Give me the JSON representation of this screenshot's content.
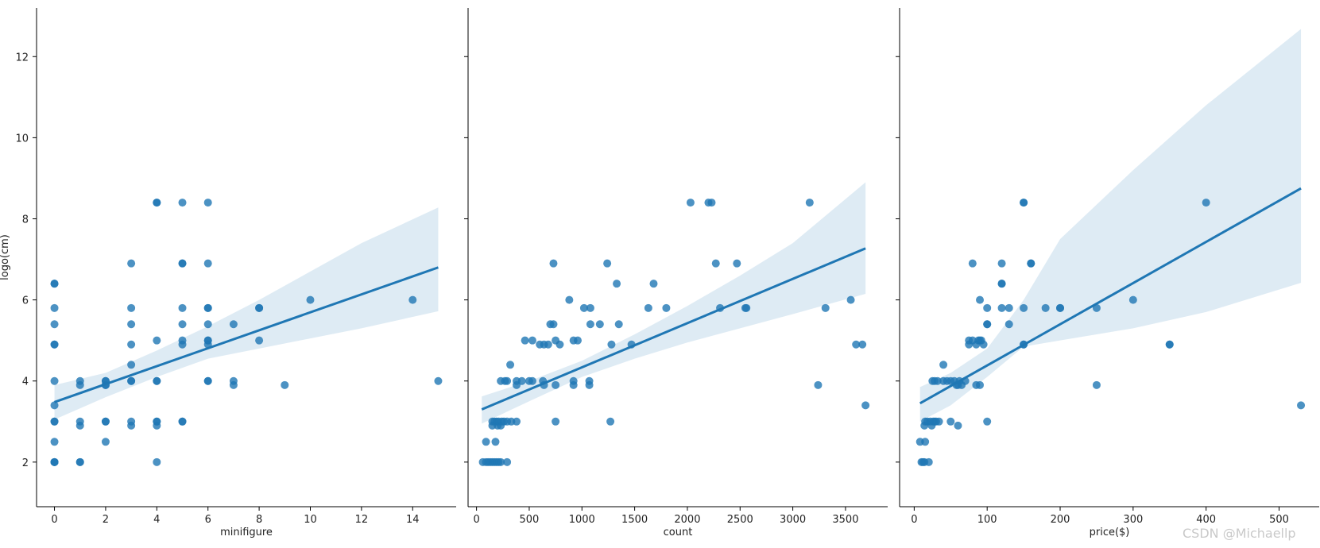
{
  "chart_data": [
    {
      "type": "scatter",
      "xlabel": "minifigure",
      "ylabel": "logo(cm)",
      "xlim": [
        -0.7,
        15.7
      ],
      "ylim": [
        0.9,
        13.2
      ],
      "xticks": [
        0,
        2,
        4,
        6,
        8,
        10,
        12,
        14
      ],
      "yticks": [
        2,
        4,
        6,
        8,
        10,
        12
      ],
      "show_yticklabels": true,
      "points": [
        [
          0,
          2
        ],
        [
          0,
          2
        ],
        [
          0,
          2
        ],
        [
          0,
          2.5
        ],
        [
          0,
          3
        ],
        [
          0,
          3
        ],
        [
          0,
          3.4
        ],
        [
          0,
          4
        ],
        [
          0,
          4.9
        ],
        [
          0,
          4.9
        ],
        [
          0,
          5.4
        ],
        [
          0,
          5.8
        ],
        [
          0,
          6.4
        ],
        [
          0,
          6.4
        ],
        [
          1,
          2
        ],
        [
          1,
          2
        ],
        [
          1,
          2.9
        ],
        [
          1,
          3
        ],
        [
          1,
          3.9
        ],
        [
          1,
          4
        ],
        [
          2,
          2.5
        ],
        [
          2,
          3
        ],
        [
          2,
          3
        ],
        [
          2,
          3.9
        ],
        [
          2,
          3.9
        ],
        [
          2,
          4
        ],
        [
          2,
          4
        ],
        [
          3,
          2.9
        ],
        [
          3,
          3
        ],
        [
          3,
          4
        ],
        [
          3,
          4
        ],
        [
          3,
          4.4
        ],
        [
          3,
          4.9
        ],
        [
          3,
          5.4
        ],
        [
          3,
          5.8
        ],
        [
          3,
          6.9
        ],
        [
          4,
          2
        ],
        [
          4,
          2.9
        ],
        [
          4,
          3
        ],
        [
          4,
          3
        ],
        [
          4,
          4
        ],
        [
          4,
          4
        ],
        [
          4,
          5
        ],
        [
          4,
          8.4
        ],
        [
          4,
          8.4
        ],
        [
          5,
          3
        ],
        [
          5,
          3
        ],
        [
          5,
          4.9
        ],
        [
          5,
          5
        ],
        [
          5,
          5.4
        ],
        [
          5,
          5.8
        ],
        [
          5,
          6.9
        ],
        [
          5,
          6.9
        ],
        [
          5,
          8.4
        ],
        [
          6,
          4
        ],
        [
          6,
          4
        ],
        [
          6,
          4.9
        ],
        [
          6,
          5
        ],
        [
          6,
          5
        ],
        [
          6,
          5.4
        ],
        [
          6,
          5.8
        ],
        [
          6,
          5.8
        ],
        [
          6,
          6.9
        ],
        [
          6,
          8.4
        ],
        [
          7,
          3.9
        ],
        [
          7,
          4
        ],
        [
          7,
          5.4
        ],
        [
          8,
          5
        ],
        [
          8,
          5.8
        ],
        [
          8,
          5.8
        ],
        [
          9,
          3.9
        ],
        [
          10,
          6
        ],
        [
          14,
          6
        ],
        [
          15,
          4
        ]
      ],
      "regression": {
        "x_start": 0,
        "y_start": 3.48,
        "x_end": 15,
        "y_end": 6.8
      },
      "ci_band": [
        [
          0,
          3.05,
          3.9
        ],
        [
          2,
          3.6,
          4.2
        ],
        [
          4,
          4.1,
          4.75
        ],
        [
          6,
          4.55,
          5.35
        ],
        [
          8,
          4.8,
          6.0
        ],
        [
          10,
          5.05,
          6.7
        ],
        [
          12,
          5.3,
          7.4
        ],
        [
          15,
          5.72,
          8.28
        ]
      ]
    },
    {
      "type": "scatter",
      "xlabel": "count",
      "ylabel": "",
      "xlim": [
        -80,
        3900
      ],
      "ylim": [
        0.9,
        13.2
      ],
      "xticks": [
        0,
        500,
        1000,
        1500,
        2000,
        2500,
        3000,
        3500
      ],
      "yticks": [
        2,
        4,
        6,
        8,
        10,
        12
      ],
      "show_yticklabels": false,
      "points": [
        [
          60,
          2
        ],
        [
          90,
          2
        ],
        [
          110,
          2
        ],
        [
          130,
          2
        ],
        [
          150,
          2
        ],
        [
          170,
          2
        ],
        [
          190,
          2
        ],
        [
          210,
          2
        ],
        [
          230,
          2
        ],
        [
          290,
          2
        ],
        [
          90,
          2.5
        ],
        [
          180,
          2.5
        ],
        [
          150,
          2.9
        ],
        [
          200,
          2.9
        ],
        [
          230,
          2.9
        ],
        [
          150,
          3
        ],
        [
          170,
          3
        ],
        [
          190,
          3
        ],
        [
          210,
          3
        ],
        [
          240,
          3
        ],
        [
          260,
          3
        ],
        [
          290,
          3
        ],
        [
          330,
          3
        ],
        [
          380,
          3
        ],
        [
          750,
          3
        ],
        [
          1270,
          3
        ],
        [
          230,
          4
        ],
        [
          270,
          4
        ],
        [
          290,
          4
        ],
        [
          380,
          4
        ],
        [
          430,
          4
        ],
        [
          500,
          4
        ],
        [
          530,
          4
        ],
        [
          630,
          4
        ],
        [
          920,
          4
        ],
        [
          1070,
          4
        ],
        [
          380,
          3.9
        ],
        [
          640,
          3.9
        ],
        [
          750,
          3.9
        ],
        [
          920,
          3.9
        ],
        [
          1070,
          3.9
        ],
        [
          3240,
          3.9
        ],
        [
          320,
          4.4
        ],
        [
          460,
          5
        ],
        [
          530,
          5
        ],
        [
          600,
          4.9
        ],
        [
          640,
          4.9
        ],
        [
          680,
          4.9
        ],
        [
          790,
          4.9
        ],
        [
          920,
          5
        ],
        [
          960,
          5
        ],
        [
          750,
          5
        ],
        [
          1280,
          4.9
        ],
        [
          1470,
          4.9
        ],
        [
          3600,
          4.9
        ],
        [
          3660,
          4.9
        ],
        [
          700,
          5.4
        ],
        [
          730,
          5.4
        ],
        [
          1080,
          5.4
        ],
        [
          1170,
          5.4
        ],
        [
          1350,
          5.4
        ],
        [
          1020,
          5.8
        ],
        [
          1080,
          5.8
        ],
        [
          1630,
          5.8
        ],
        [
          1800,
          5.8
        ],
        [
          2310,
          5.8
        ],
        [
          2550,
          5.8
        ],
        [
          2560,
          5.8
        ],
        [
          3310,
          5.8
        ],
        [
          880,
          6
        ],
        [
          3550,
          6
        ],
        [
          1330,
          6.4
        ],
        [
          1680,
          6.4
        ],
        [
          730,
          6.9
        ],
        [
          1240,
          6.9
        ],
        [
          2270,
          6.9
        ],
        [
          2470,
          6.9
        ],
        [
          2030,
          8.4
        ],
        [
          2200,
          8.4
        ],
        [
          2230,
          8.4
        ],
        [
          3160,
          8.4
        ],
        [
          3690,
          3.4
        ]
      ],
      "regression": {
        "x_start": 50,
        "y_start": 3.3,
        "x_end": 3690,
        "y_end": 7.27
      },
      "ci_band": [
        [
          50,
          2.95,
          3.62
        ],
        [
          500,
          3.5,
          4.0
        ],
        [
          1000,
          4.1,
          4.5
        ],
        [
          1500,
          4.55,
          5.15
        ],
        [
          2000,
          4.95,
          5.85
        ],
        [
          2500,
          5.3,
          6.6
        ],
        [
          3000,
          5.65,
          7.4
        ],
        [
          3690,
          6.15,
          8.9
        ]
      ]
    },
    {
      "type": "scatter",
      "xlabel": "price($)",
      "ylabel": "",
      "xlim": [
        -20,
        555
      ],
      "ylim": [
        0.9,
        13.2
      ],
      "xticks": [
        0,
        100,
        200,
        300,
        400,
        500
      ],
      "yticks": [
        2,
        4,
        6,
        8,
        10,
        12
      ],
      "show_yticklabels": false,
      "points": [
        [
          8,
          2.5
        ],
        [
          10,
          2
        ],
        [
          12,
          2
        ],
        [
          14,
          2
        ],
        [
          15,
          2.5
        ],
        [
          20,
          2
        ],
        [
          14,
          2.9
        ],
        [
          15,
          3
        ],
        [
          18,
          3
        ],
        [
          22,
          3
        ],
        [
          24,
          2.9
        ],
        [
          26,
          3
        ],
        [
          28,
          3
        ],
        [
          30,
          3
        ],
        [
          34,
          3
        ],
        [
          50,
          3
        ],
        [
          60,
          2.9
        ],
        [
          100,
          3
        ],
        [
          25,
          4
        ],
        [
          28,
          4
        ],
        [
          32,
          4
        ],
        [
          40,
          4
        ],
        [
          45,
          4
        ],
        [
          50,
          4
        ],
        [
          55,
          4
        ],
        [
          58,
          3.9
        ],
        [
          60,
          3.9
        ],
        [
          62,
          4
        ],
        [
          65,
          3.9
        ],
        [
          70,
          4
        ],
        [
          40,
          4.4
        ],
        [
          75,
          4.9
        ],
        [
          75,
          5
        ],
        [
          80,
          5
        ],
        [
          85,
          4.9
        ],
        [
          88,
          5
        ],
        [
          90,
          5
        ],
        [
          92,
          5
        ],
        [
          95,
          4.9
        ],
        [
          150,
          4.9
        ],
        [
          150,
          4.9
        ],
        [
          350,
          4.9
        ],
        [
          350,
          4.9
        ],
        [
          85,
          3.9
        ],
        [
          90,
          3.9
        ],
        [
          250,
          3.9
        ],
        [
          100,
          5.4
        ],
        [
          100,
          5.4
        ],
        [
          130,
          5.4
        ],
        [
          100,
          5.8
        ],
        [
          120,
          5.8
        ],
        [
          130,
          5.8
        ],
        [
          150,
          5.8
        ],
        [
          180,
          5.8
        ],
        [
          200,
          5.8
        ],
        [
          200,
          5.8
        ],
        [
          250,
          5.8
        ],
        [
          90,
          6
        ],
        [
          300,
          6
        ],
        [
          120,
          6.4
        ],
        [
          120,
          6.4
        ],
        [
          80,
          6.9
        ],
        [
          120,
          6.9
        ],
        [
          160,
          6.9
        ],
        [
          160,
          6.9
        ],
        [
          150,
          8.4
        ],
        [
          150,
          8.4
        ],
        [
          400,
          8.4
        ],
        [
          530,
          3.4
        ]
      ],
      "regression": {
        "x_start": 8,
        "y_start": 3.45,
        "x_end": 530,
        "y_end": 8.75
      },
      "ci_band": [
        [
          8,
          3.0,
          3.85
        ],
        [
          50,
          3.4,
          4.2
        ],
        [
          100,
          4.1,
          4.8
        ],
        [
          150,
          4.85,
          6.0
        ],
        [
          200,
          5.0,
          7.5
        ],
        [
          300,
          5.3,
          9.2
        ],
        [
          400,
          5.7,
          10.8
        ],
        [
          530,
          6.42,
          12.68
        ]
      ]
    }
  ],
  "watermark": "CSDN @Michaellp",
  "colors": {
    "point": "#1f77b4",
    "line": "#1f77b4",
    "band": "#1f77b4",
    "axis": "#000000"
  }
}
